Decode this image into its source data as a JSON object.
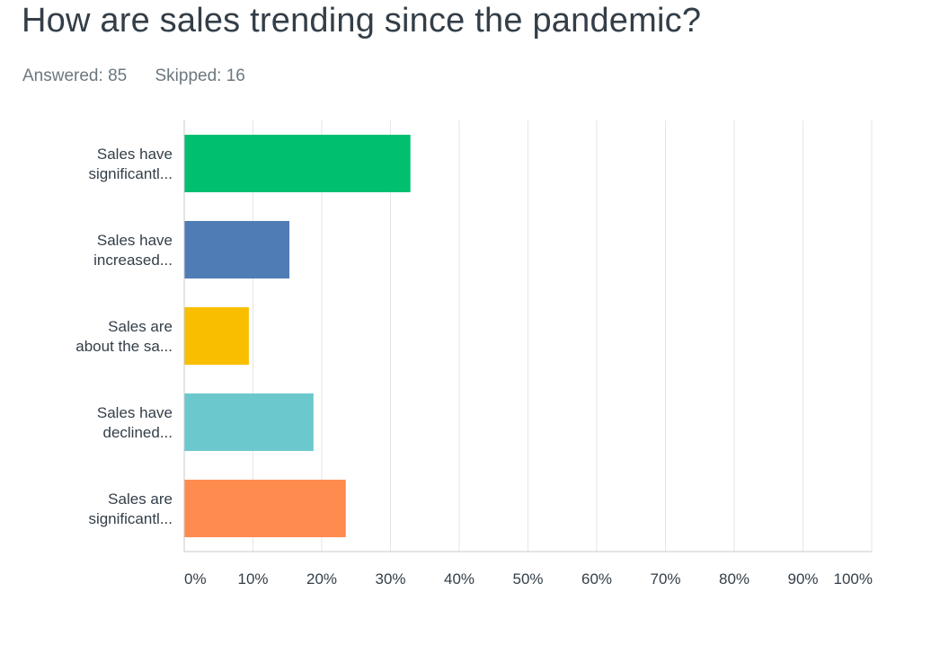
{
  "question": {
    "title": "How are sales trending since the pandemic?"
  },
  "stats": {
    "answered_label": "Answered:",
    "answered_value": "85",
    "skipped_label": "Skipped:",
    "skipped_value": "16"
  },
  "chart_data": {
    "type": "bar",
    "orientation": "horizontal",
    "categories": [
      [
        "Sales have",
        "significantl..."
      ],
      [
        "Sales have",
        "increased..."
      ],
      [
        "Sales are",
        "about the sa..."
      ],
      [
        "Sales have",
        "declined..."
      ],
      [
        "Sales are",
        "significantl..."
      ]
    ],
    "values": [
      32.9,
      15.3,
      9.4,
      18.8,
      23.5
    ],
    "colors": [
      "#00bf6f",
      "#507cb6",
      "#f9be00",
      "#6bc8cd",
      "#ff8b4f"
    ],
    "xlim": [
      0,
      100
    ],
    "ticks": [
      "0%",
      "10%",
      "20%",
      "30%",
      "40%",
      "50%",
      "60%",
      "70%",
      "80%",
      "90%",
      "100%"
    ],
    "grid": true,
    "title": "",
    "xlabel": "",
    "ylabel": ""
  }
}
